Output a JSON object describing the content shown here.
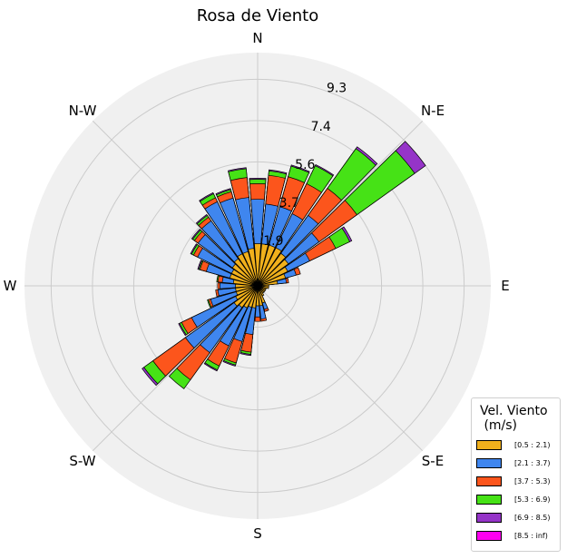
{
  "chart_data": {
    "type": "windrose",
    "title": "Rosa de Viento",
    "directions": [
      "N",
      "N-E",
      "E",
      "S-E",
      "S",
      "S-W",
      "W",
      "N-W"
    ],
    "radial_ticks": [
      "1.9",
      "3.7",
      "5.6",
      "7.4",
      "9.3"
    ],
    "radial_tick_values": [
      1.86,
      3.72,
      5.58,
      7.44,
      9.3
    ],
    "r_max": 10.5,
    "legend_title": "Vel. Viento\n (m/s)",
    "bins": [
      {
        "label": "[0.5 : 2.1)",
        "color": "#f0b01c"
      },
      {
        "label": "[2.1 : 3.7)",
        "color": "#3f86ef"
      },
      {
        "label": "[3.7 : 5.3)",
        "color": "#fc551c"
      },
      {
        "label": "[5.3 : 6.9)",
        "color": "#46e216"
      },
      {
        "label": "[6.9 : 8.5)",
        "color": "#9534c8"
      },
      {
        "label": "[8.5 : inf)",
        "color": "#ff00f0"
      }
    ],
    "sector_width_deg": 10,
    "sectors": [
      {
        "angle": 0,
        "values": [
          1.9,
          3.9,
          4.6,
          4.8,
          4.85,
          4.85
        ]
      },
      {
        "angle": 10,
        "values": [
          1.9,
          3.7,
          5.0,
          5.2,
          5.25,
          5.25
        ]
      },
      {
        "angle": 20,
        "values": [
          1.9,
          3.7,
          5.1,
          5.6,
          5.65,
          5.65
        ]
      },
      {
        "angle": 30,
        "values": [
          1.9,
          3.6,
          5.1,
          6.0,
          6.05,
          6.05
        ]
      },
      {
        "angle": 40,
        "values": [
          1.8,
          3.9,
          5.4,
          7.6,
          7.7,
          7.7
        ]
      },
      {
        "angle": 50,
        "values": [
          1.7,
          3.4,
          5.5,
          8.7,
          9.3,
          9.3
        ]
      },
      {
        "angle": 60,
        "values": [
          1.5,
          2.6,
          3.9,
          4.6,
          4.7,
          4.7
        ]
      },
      {
        "angle": 70,
        "values": [
          1.3,
          1.8,
          2.0,
          2.0,
          2.0,
          2.0
        ]
      },
      {
        "angle": 80,
        "values": [
          0.9,
          1.3,
          1.4,
          1.4,
          1.4,
          1.4
        ]
      },
      {
        "angle": 90,
        "values": [
          0.5,
          0.5,
          0.5,
          0.5,
          0.5,
          0.5
        ]
      },
      {
        "angle": 100,
        "values": [
          0.5,
          0.5,
          0.5,
          0.5,
          0.5,
          0.5
        ]
      },
      {
        "angle": 110,
        "values": [
          0.4,
          0.4,
          0.4,
          0.4,
          0.4,
          0.4
        ]
      },
      {
        "angle": 120,
        "values": [
          0.4,
          0.4,
          0.4,
          0.4,
          0.4,
          0.4
        ]
      },
      {
        "angle": 130,
        "values": [
          0.4,
          0.4,
          0.4,
          0.4,
          0.4,
          0.4
        ]
      },
      {
        "angle": 140,
        "values": [
          0.4,
          0.4,
          0.4,
          0.4,
          0.4,
          0.4
        ]
      },
      {
        "angle": 150,
        "values": [
          0.5,
          0.5,
          0.5,
          0.5,
          0.5,
          0.5
        ]
      },
      {
        "angle": 160,
        "values": [
          0.8,
          1.1,
          1.2,
          1.2,
          1.2,
          1.2
        ]
      },
      {
        "angle": 170,
        "values": [
          0.9,
          1.5,
          1.6,
          1.6,
          1.6,
          1.6
        ]
      },
      {
        "angle": 180,
        "values": [
          0.9,
          1.4,
          1.6,
          1.6,
          1.6,
          1.6
        ]
      },
      {
        "angle": 190,
        "values": [
          1.0,
          2.2,
          3.0,
          3.1,
          3.15,
          3.15
        ]
      },
      {
        "angle": 200,
        "values": [
          1.0,
          2.6,
          3.6,
          3.7,
          3.75,
          3.75
        ]
      },
      {
        "angle": 210,
        "values": [
          1.1,
          3.0,
          4.0,
          4.2,
          4.25,
          4.25
        ]
      },
      {
        "angle": 220,
        "values": [
          1.2,
          3.7,
          5.2,
          5.7,
          5.7,
          5.7
        ]
      },
      {
        "angle": 230,
        "values": [
          1.3,
          4.0,
          5.8,
          6.3,
          6.4,
          6.4
        ]
      },
      {
        "angle": 240,
        "values": [
          1.1,
          3.3,
          3.8,
          3.9,
          3.95,
          3.95
        ]
      },
      {
        "angle": 250,
        "values": [
          1.0,
          2.2,
          2.3,
          2.35,
          2.35,
          2.35
        ]
      },
      {
        "angle": 260,
        "values": [
          1.0,
          1.8,
          1.9,
          1.9,
          1.9,
          1.9
        ]
      },
      {
        "angle": 270,
        "values": [
          1.0,
          1.7,
          1.8,
          1.8,
          1.8,
          1.8
        ]
      },
      {
        "angle": 280,
        "values": [
          1.1,
          1.6,
          1.8,
          1.85,
          1.85,
          1.85
        ]
      },
      {
        "angle": 290,
        "values": [
          1.3,
          2.4,
          2.7,
          2.75,
          2.8,
          2.8
        ]
      },
      {
        "angle": 300,
        "values": [
          1.3,
          3.0,
          3.2,
          3.3,
          3.35,
          3.35
        ]
      },
      {
        "angle": 310,
        "values": [
          1.4,
          3.3,
          3.5,
          3.6,
          3.65,
          3.65
        ]
      },
      {
        "angle": 320,
        "values": [
          1.5,
          3.6,
          3.8,
          3.9,
          3.95,
          3.95
        ]
      },
      {
        "angle": 330,
        "values": [
          1.6,
          4.2,
          4.4,
          4.6,
          4.65,
          4.65
        ]
      },
      {
        "angle": 340,
        "values": [
          1.6,
          4.1,
          4.4,
          4.5,
          4.55,
          4.55
        ]
      },
      {
        "angle": 350,
        "values": [
          1.7,
          4.0,
          4.9,
          5.3,
          5.35,
          5.35
        ]
      }
    ]
  }
}
